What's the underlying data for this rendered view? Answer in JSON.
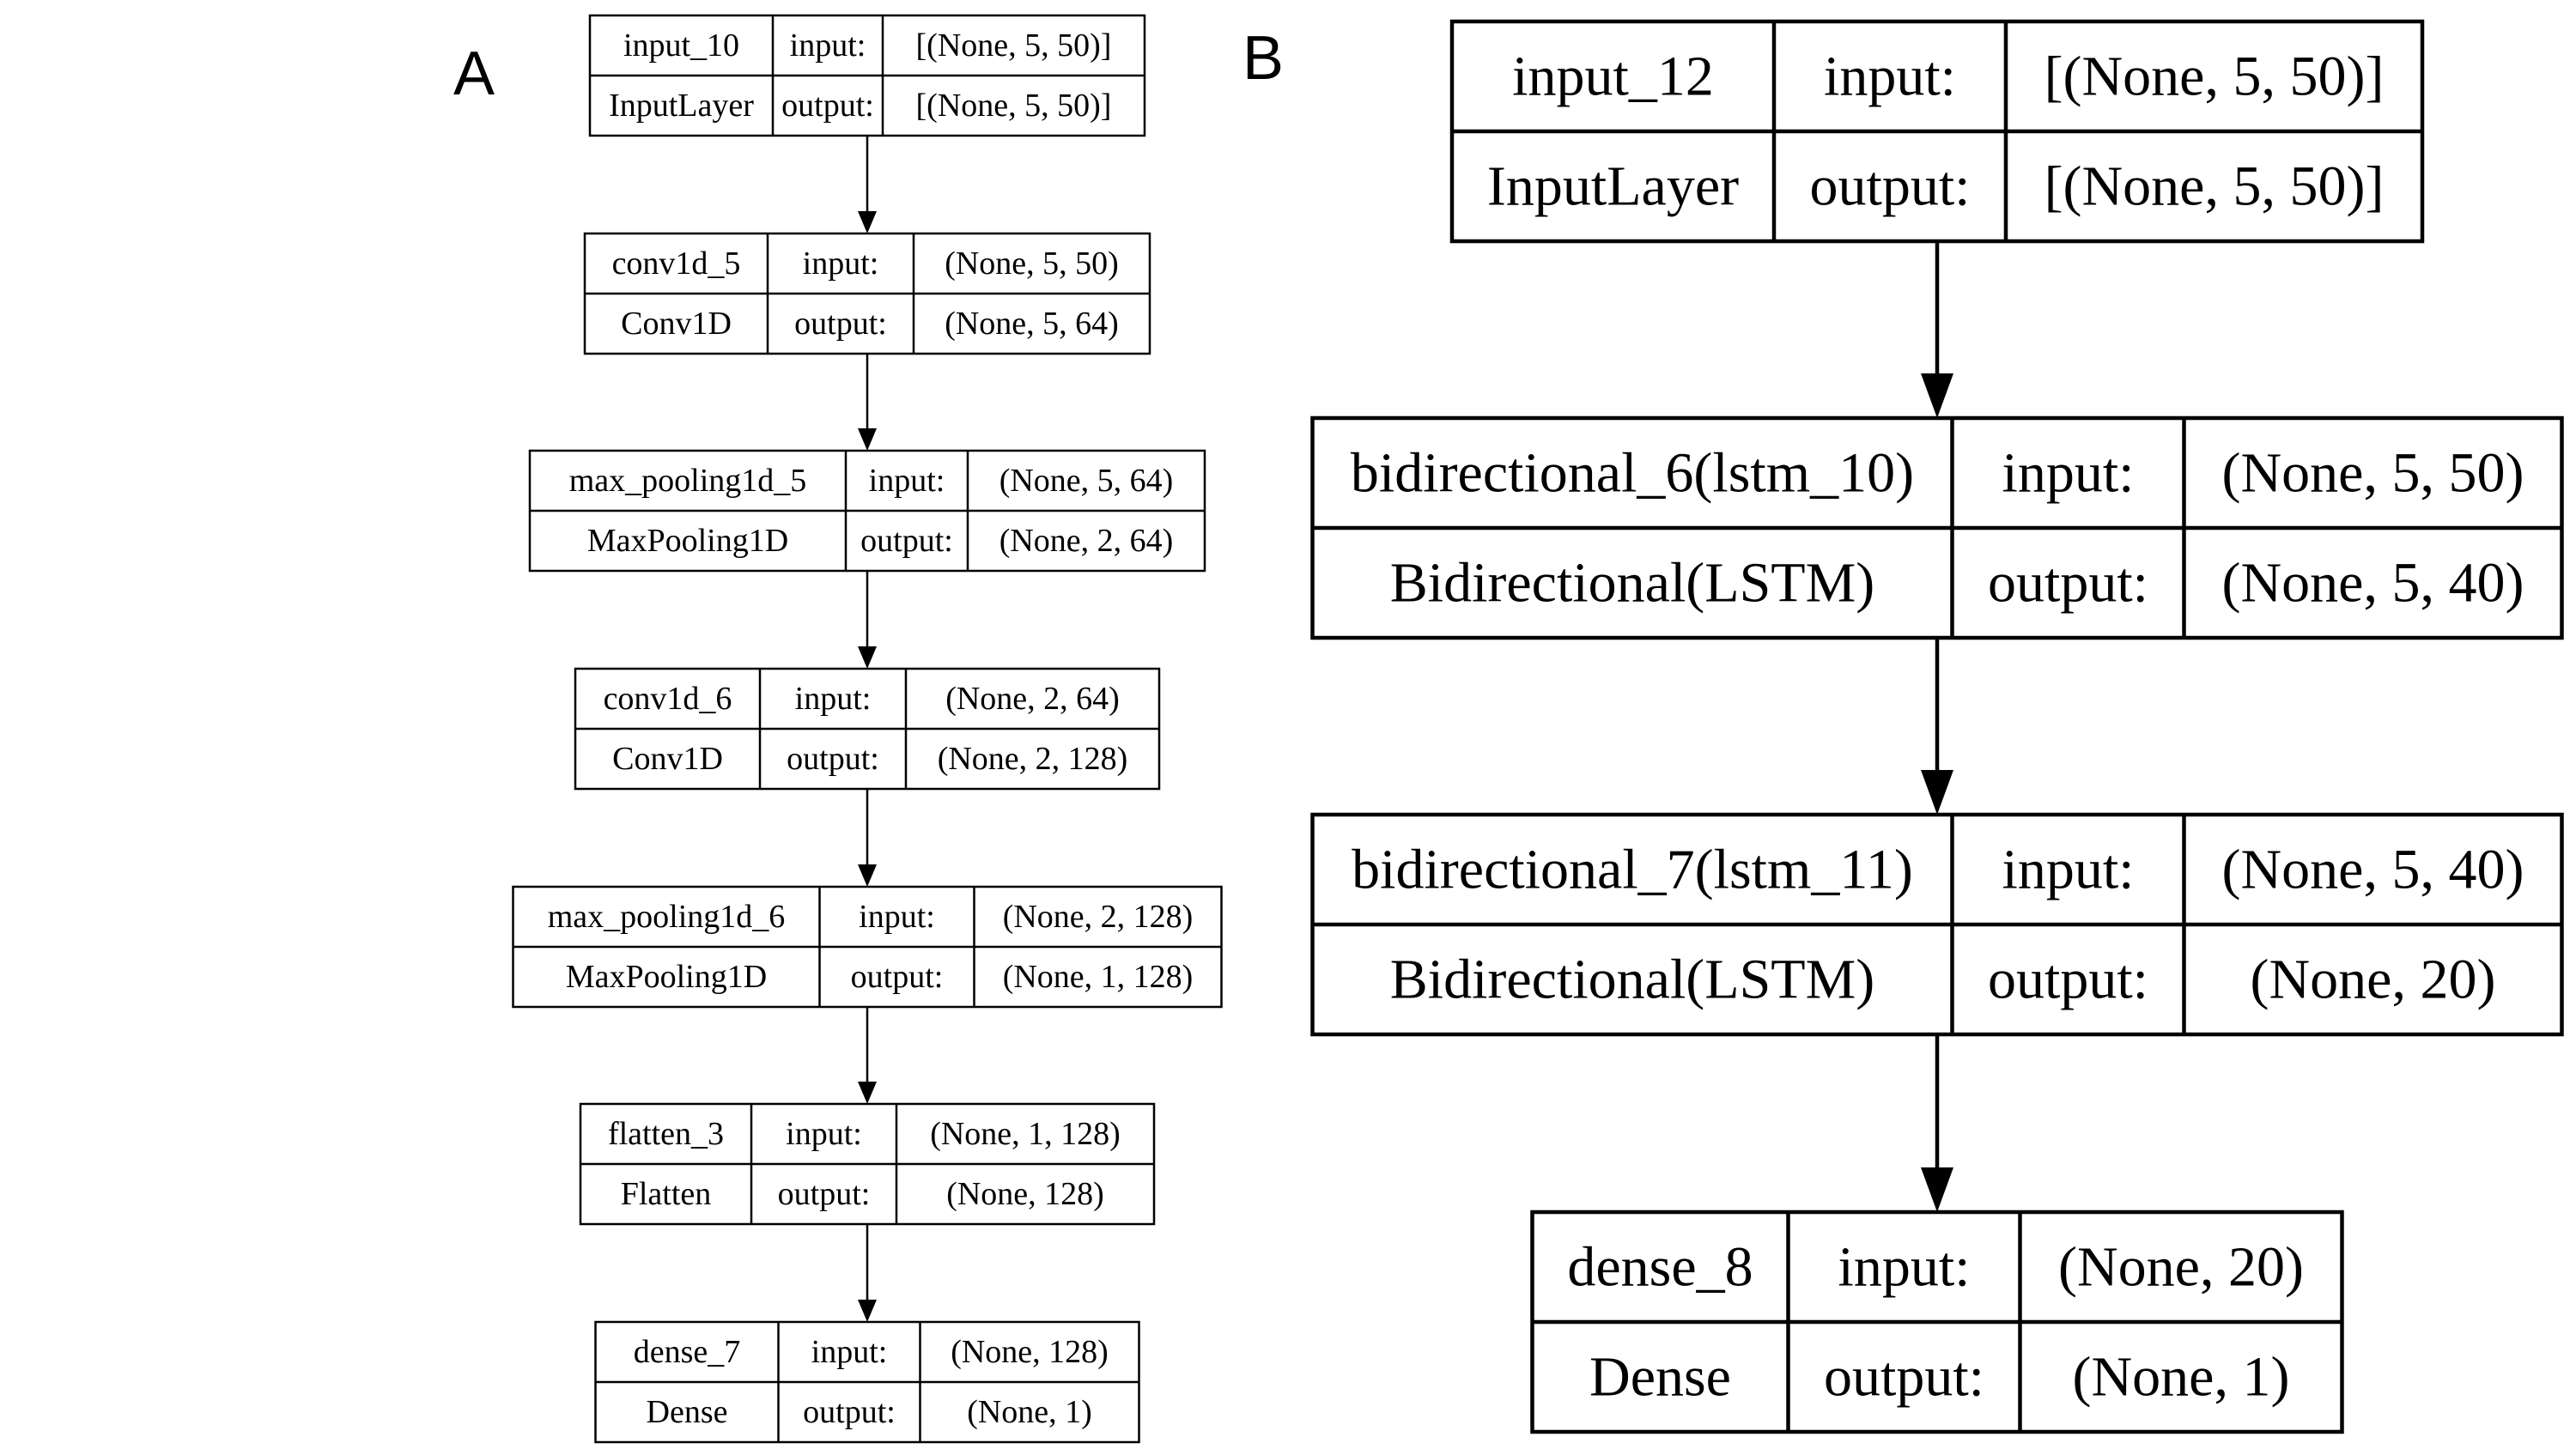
{
  "panels": [
    {
      "label": "A",
      "layers": [
        {
          "name": "input_10",
          "type": "InputLayer",
          "input_label": "input:",
          "output_label": "output:",
          "input": "[(None, 5, 50)]",
          "output": "[(None, 5, 50)]"
        },
        {
          "name": "conv1d_5",
          "type": "Conv1D",
          "input_label": "input:",
          "output_label": "output:",
          "input": "(None, 5, 50)",
          "output": "(None, 5, 64)"
        },
        {
          "name": "max_pooling1d_5",
          "type": "MaxPooling1D",
          "input_label": "input:",
          "output_label": "output:",
          "input": "(None, 5, 64)",
          "output": "(None, 2, 64)"
        },
        {
          "name": "conv1d_6",
          "type": "Conv1D",
          "input_label": "input:",
          "output_label": "output:",
          "input": "(None, 2, 64)",
          "output": "(None, 2, 128)"
        },
        {
          "name": "max_pooling1d_6",
          "type": "MaxPooling1D",
          "input_label": "input:",
          "output_label": "output:",
          "input": "(None, 2, 128)",
          "output": "(None, 1, 128)"
        },
        {
          "name": "flatten_3",
          "type": "Flatten",
          "input_label": "input:",
          "output_label": "output:",
          "input": "(None, 1, 128)",
          "output": "(None, 128)"
        },
        {
          "name": "dense_7",
          "type": "Dense",
          "input_label": "input:",
          "output_label": "output:",
          "input": "(None, 128)",
          "output": "(None, 1)"
        }
      ]
    },
    {
      "label": "B",
      "layers": [
        {
          "name": "input_12",
          "type": "InputLayer",
          "input_label": "input:",
          "output_label": "output:",
          "input": "[(None, 5, 50)]",
          "output": "[(None, 5, 50)]"
        },
        {
          "name": "bidirectional_6(lstm_10)",
          "type": "Bidirectional(LSTM)",
          "input_label": "input:",
          "output_label": "output:",
          "input": "(None, 5, 50)",
          "output": "(None, 5, 40)"
        },
        {
          "name": "bidirectional_7(lstm_11)",
          "type": "Bidirectional(LSTM)",
          "input_label": "input:",
          "output_label": "output:",
          "input": "(None, 5, 40)",
          "output": "(None, 20)"
        },
        {
          "name": "dense_8",
          "type": "Dense",
          "input_label": "input:",
          "output_label": "output:",
          "input": "(None, 20)",
          "output": "(None, 1)"
        }
      ]
    }
  ]
}
